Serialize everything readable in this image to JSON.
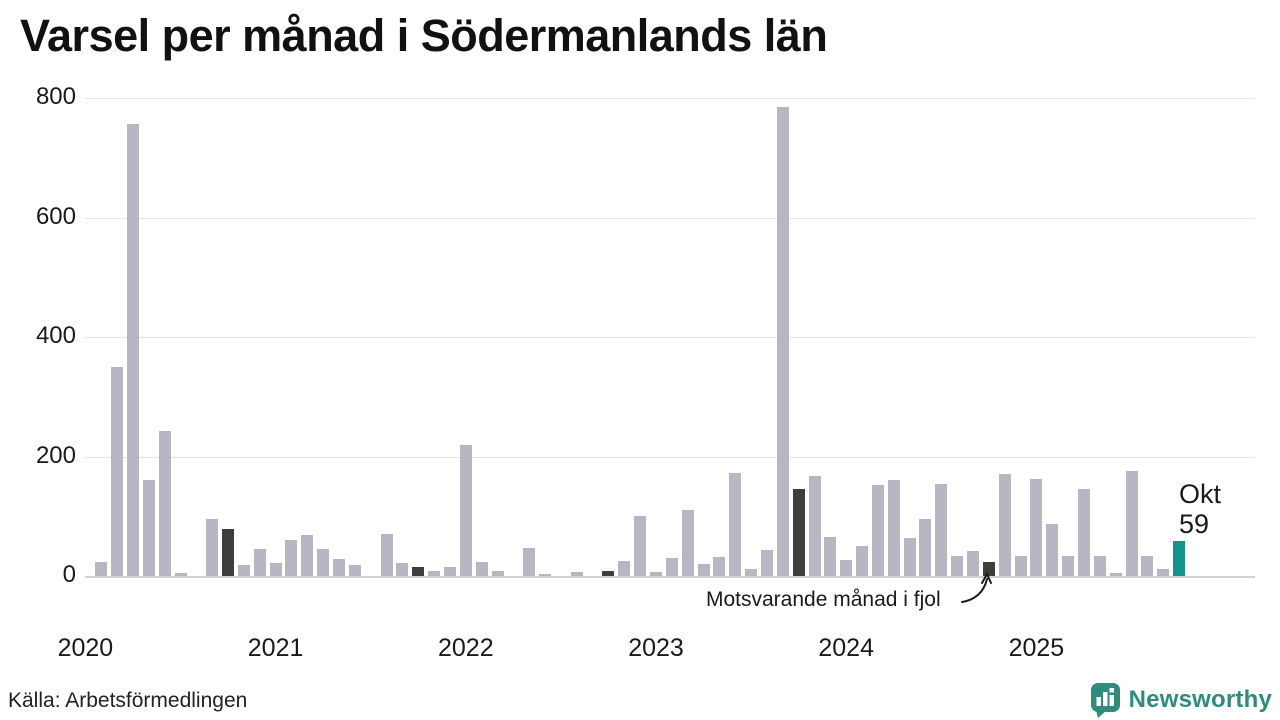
{
  "title": "Varsel per månad i Södermanlands län",
  "source": "Källa: Arbetsförmedlingen",
  "annotation": {
    "text": "Motsvarande månad i fjol",
    "points_to": "okt 2024"
  },
  "last_point_label": {
    "month": "Okt",
    "value": "59"
  },
  "branding": {
    "name": "Newsworthy",
    "icon": "newsworthy-pin-barchart-icon",
    "color": "#2e8c7e"
  },
  "colors": {
    "bar_normal": "#b9b6c3",
    "bar_highlight_dark": "#3e3e3e",
    "bar_highlight_teal": "#14948a",
    "gridline": "#e3e3e3",
    "axis_line": "#d2d2d2",
    "text": "#1a1a1a"
  },
  "chart_data": {
    "type": "bar",
    "title": "Varsel per månad i Södermanlands län",
    "xlabel": "",
    "ylabel": "",
    "ylim": [
      0,
      800
    ],
    "yticks": [
      0,
      200,
      400,
      600,
      800
    ],
    "grid": "horizontal",
    "legend": false,
    "x_year_labels": [
      "2020",
      "2021",
      "2022",
      "2023",
      "2024",
      "2025"
    ],
    "highlight_note": "dark = oktober tidigare år, teal = okt 2025",
    "months": [
      [
        "jan 2020",
        0
      ],
      [
        "feb 2020",
        23
      ],
      [
        "mar 2020",
        350
      ],
      [
        "apr 2020",
        757
      ],
      [
        "maj 2020",
        160
      ],
      [
        "jun 2020",
        243
      ],
      [
        "jul 2020",
        5
      ],
      [
        "aug 2020",
        0
      ],
      [
        "sep 2020",
        95
      ],
      [
        "okt 2020",
        78,
        "dark"
      ],
      [
        "nov 2020",
        18
      ],
      [
        "dec 2020",
        45
      ],
      [
        "jan 2021",
        22
      ],
      [
        "feb 2021",
        60
      ],
      [
        "mar 2021",
        68
      ],
      [
        "apr 2021",
        45
      ],
      [
        "maj 2021",
        28
      ],
      [
        "jun 2021",
        18
      ],
      [
        "jul 2021",
        0
      ],
      [
        "aug 2021",
        70
      ],
      [
        "sep 2021",
        22
      ],
      [
        "okt 2021",
        15,
        "dark"
      ],
      [
        "nov 2021",
        8
      ],
      [
        "dec 2021",
        15
      ],
      [
        "jan 2022",
        220
      ],
      [
        "feb 2022",
        23
      ],
      [
        "mar 2022",
        8
      ],
      [
        "apr 2022",
        0
      ],
      [
        "maj 2022",
        47
      ],
      [
        "jun 2022",
        4
      ],
      [
        "jul 2022",
        0
      ],
      [
        "aug 2022",
        6
      ],
      [
        "sep 2022",
        0
      ],
      [
        "okt 2022",
        9,
        "dark"
      ],
      [
        "nov 2022",
        25
      ],
      [
        "dec 2022",
        100
      ],
      [
        "jan 2023",
        7
      ],
      [
        "feb 2023",
        30
      ],
      [
        "mar 2023",
        111
      ],
      [
        "apr 2023",
        20
      ],
      [
        "maj 2023",
        32
      ],
      [
        "jun 2023",
        172
      ],
      [
        "jul 2023",
        11
      ],
      [
        "aug 2023",
        44
      ],
      [
        "sep 2023",
        785
      ],
      [
        "okt 2023",
        145,
        "dark"
      ],
      [
        "nov 2023",
        168
      ],
      [
        "dec 2023",
        65
      ],
      [
        "jan 2024",
        27
      ],
      [
        "feb 2024",
        50
      ],
      [
        "mar 2024",
        152
      ],
      [
        "apr 2024",
        160
      ],
      [
        "maj 2024",
        63
      ],
      [
        "jun 2024",
        95
      ],
      [
        "jul 2024",
        154
      ],
      [
        "aug 2024",
        33
      ],
      [
        "sep 2024",
        42
      ],
      [
        "okt 2024",
        24,
        "dark"
      ],
      [
        "nov 2024",
        170
      ],
      [
        "dec 2024",
        33
      ],
      [
        "jan 2025",
        163
      ],
      [
        "feb 2025",
        87
      ],
      [
        "mar 2025",
        33
      ],
      [
        "apr 2025",
        146
      ],
      [
        "maj 2025",
        33
      ],
      [
        "jun 2025",
        5
      ],
      [
        "jul 2025",
        176
      ],
      [
        "aug 2025",
        33
      ],
      [
        "sep 2025",
        12
      ],
      [
        "okt 2025",
        59,
        "teal"
      ]
    ]
  }
}
